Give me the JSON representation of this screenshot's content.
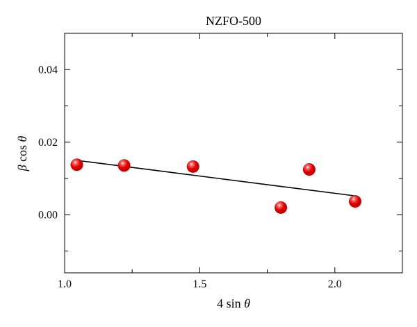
{
  "chart_data": {
    "type": "scatter",
    "title": "NZFO-500",
    "xlabel": "4 sin θ",
    "ylabel": "β cos θ",
    "xlim": [
      1.0,
      2.25
    ],
    "ylim": [
      -0.016,
      0.05
    ],
    "x_ticks": [
      1.0,
      1.5,
      2.0
    ],
    "x_tick_labels": [
      "1.0",
      "1.5",
      "2.0"
    ],
    "y_ticks": [
      0.0,
      0.02,
      0.04
    ],
    "y_tick_labels": [
      "0.00",
      "0.02",
      "0.04"
    ],
    "grid": false,
    "legend": "none",
    "series": [
      {
        "x": [
          1.045,
          1.22,
          1.475,
          1.8,
          1.905,
          2.075
        ],
        "y": [
          0.0138,
          0.0136,
          0.0133,
          0.002,
          0.0125,
          0.0037
        ],
        "color": "#e00000",
        "marker": "sphere"
      }
    ],
    "fit_line": {
      "x": [
        1.045,
        2.075
      ],
      "y": [
        0.015,
        0.0052
      ],
      "color": "#000000"
    }
  }
}
